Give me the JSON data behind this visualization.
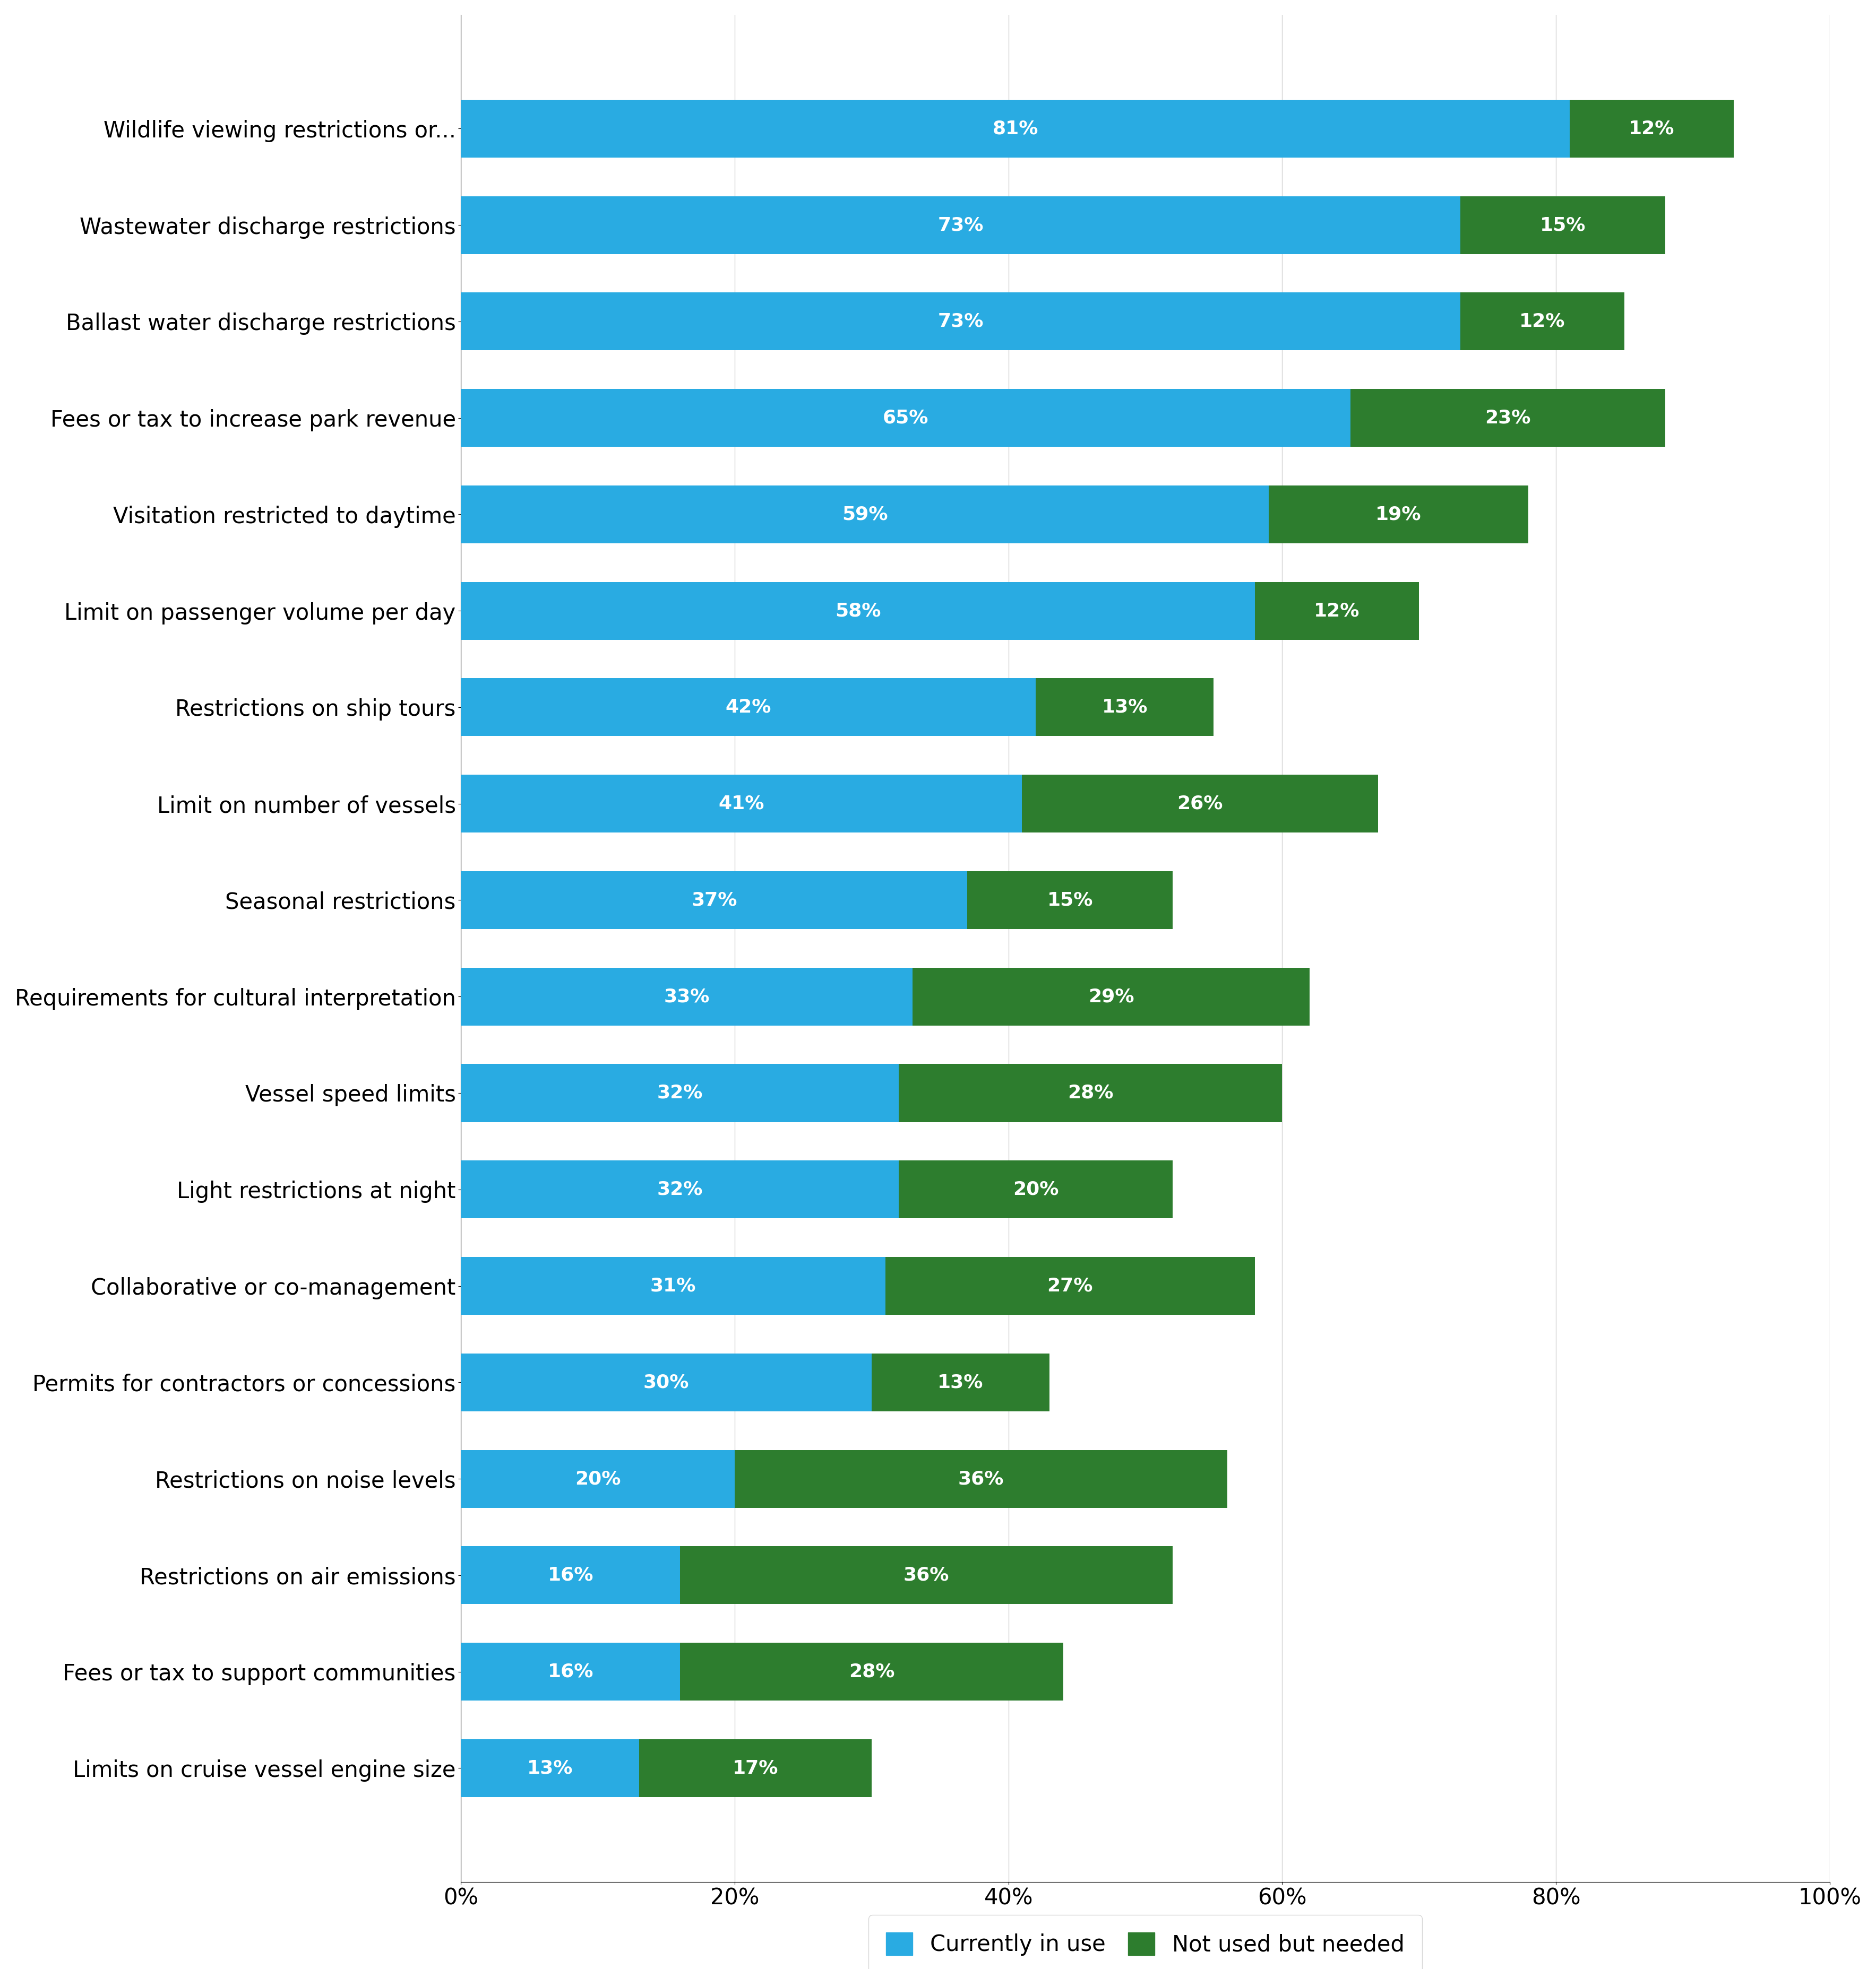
{
  "categories": [
    "Wildlife viewing restrictions or...",
    "Wastewater discharge restrictions",
    "Ballast water discharge restrictions",
    "Fees or tax to increase park revenue",
    "Visitation restricted to daytime",
    "Limit on passenger volume per day",
    "Restrictions on ship tours",
    "Limit on number of vessels",
    "Seasonal restrictions",
    "Requirements for cultural interpretation",
    "Vessel speed limits",
    "Light restrictions at night",
    "Collaborative or co-management",
    "Permits for contractors or concessions",
    "Restrictions on noise levels",
    "Restrictions on air emissions",
    "Fees or tax to support communities",
    "Limits on cruise vessel engine size"
  ],
  "currently_in_use": [
    81,
    73,
    73,
    65,
    59,
    58,
    42,
    41,
    37,
    33,
    32,
    32,
    31,
    30,
    20,
    16,
    16,
    13
  ],
  "not_used_but_needed": [
    12,
    15,
    12,
    23,
    19,
    12,
    13,
    26,
    15,
    29,
    28,
    20,
    27,
    13,
    36,
    36,
    28,
    17
  ],
  "color_blue": "#29ABE2",
  "color_green": "#2D7D2E",
  "bar_height": 0.6,
  "xlim": [
    0,
    100
  ],
  "xticks": [
    0,
    20,
    40,
    60,
    80,
    100
  ],
  "xticklabels": [
    "0%",
    "20%",
    "40%",
    "60%",
    "80%",
    "100%"
  ],
  "legend_blue": "Currently in use",
  "legend_green": "Not used but needed",
  "dpi": 100,
  "tick_fontsize": 30,
  "legend_fontsize": 30,
  "bar_label_fontsize": 26,
  "ytick_fontsize": 30
}
